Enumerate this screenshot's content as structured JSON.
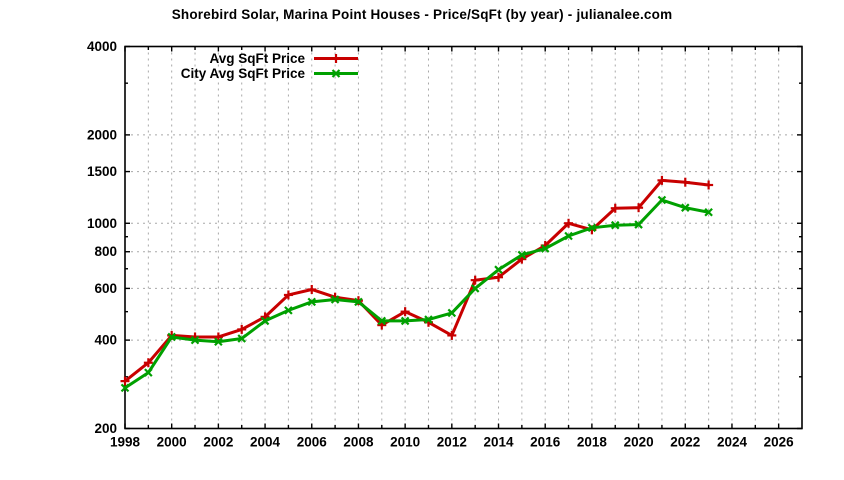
{
  "chart_data": {
    "type": "line",
    "title": "Shorebird Solar, Marina Point Houses - Price/SqFt (by year) - julianalee.com",
    "xlabel": "",
    "ylabel": "",
    "x": [
      1998,
      1999,
      2000,
      2001,
      2002,
      2003,
      2004,
      2005,
      2006,
      2007,
      2008,
      2009,
      2010,
      2011,
      2012,
      2013,
      2014,
      2015,
      2016,
      2017,
      2018,
      2019,
      2020,
      2021,
      2022,
      2023
    ],
    "series": [
      {
        "name": "Avg SqFt Price",
        "color": "#c80000",
        "marker": "plus",
        "values": [
          290,
          335,
          415,
          410,
          410,
          435,
          480,
          570,
          595,
          560,
          545,
          450,
          500,
          460,
          415,
          640,
          655,
          755,
          840,
          1000,
          950,
          1125,
          1130,
          1400,
          1380,
          1350
        ]
      },
      {
        "name": "City Avg SqFt Price",
        "color": "#00a000",
        "marker": "cross",
        "values": [
          275,
          310,
          410,
          400,
          395,
          405,
          465,
          505,
          540,
          550,
          540,
          465,
          465,
          470,
          495,
          600,
          695,
          780,
          820,
          905,
          965,
          985,
          990,
          1200,
          1130,
          1090
        ]
      }
    ],
    "axes": {
      "x": {
        "min": 1998,
        "max": 2027,
        "tick_step_labeled": 2,
        "tick_step_minor": 1,
        "tick_labels": [
          1998,
          2000,
          2002,
          2004,
          2006,
          2008,
          2010,
          2012,
          2014,
          2016,
          2018,
          2020,
          2022,
          2024,
          2026
        ]
      },
      "y": {
        "scale": "log",
        "min": 200,
        "max": 4000,
        "tick_labels": [
          200,
          400,
          600,
          800,
          1000,
          1500,
          2000,
          4000
        ],
        "minor_ticks": [
          300,
          500,
          700,
          900,
          3000
        ]
      }
    },
    "legend": {
      "position": "top-left",
      "entries": [
        "Avg SqFt Price",
        "City Avg SqFt Price"
      ]
    },
    "grid": {
      "show": true,
      "style": "dashed",
      "color": "#a8a8a8"
    },
    "colors": {
      "axis": "#000000",
      "background": "#ffffff"
    }
  }
}
